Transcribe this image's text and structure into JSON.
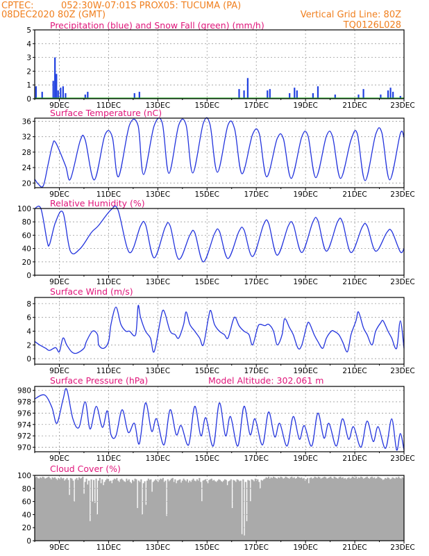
{
  "header": {
    "source": "CPTEC:",
    "location": "052:30W-07:01S   PROX05: TUCUMA (PA)",
    "run": "08DEC2020 80Z (GMT)",
    "grid_note": "Vertical Grid Line: 80Z",
    "code": "TQ0126L028"
  },
  "colors": {
    "precip": "#1f3fe0",
    "snow": "#22b022",
    "line": "#2233dd",
    "cloud": "#aaaaaa",
    "title": "#e0157a",
    "header": "#f07f1e"
  },
  "x_ticks": [
    "9DEC",
    "11DEC",
    "13DEC",
    "15DEC",
    "17DEC",
    "19DEC",
    "21DEC",
    "23DEC"
  ],
  "chart_data": [
    {
      "type": "bar",
      "id": "precip",
      "title": "Precipitation (blue) and Snow Fall (green) (mm/h)",
      "ylim": [
        0,
        5
      ],
      "yticks": [
        0,
        1,
        2,
        3,
        4,
        5
      ],
      "x_range": [
        0,
        15
      ],
      "series": [
        {
          "name": "Precipitation",
          "points": [
            [
              0.05,
              0.9
            ],
            [
              0.3,
              0.5
            ],
            [
              0.75,
              1.3
            ],
            [
              0.82,
              3.0
            ],
            [
              0.88,
              1.8
            ],
            [
              0.95,
              0.6
            ],
            [
              1.05,
              0.8
            ],
            [
              1.15,
              0.9
            ],
            [
              1.25,
              0.4
            ],
            [
              2.05,
              0.3
            ],
            [
              2.15,
              0.5
            ],
            [
              4.05,
              0.4
            ],
            [
              4.25,
              0.5
            ],
            [
              8.3,
              0.7
            ],
            [
              8.5,
              0.6
            ],
            [
              8.65,
              1.5
            ],
            [
              9.45,
              0.6
            ],
            [
              9.55,
              0.7
            ],
            [
              10.35,
              0.4
            ],
            [
              10.55,
              0.8
            ],
            [
              10.65,
              0.6
            ],
            [
              11.3,
              0.4
            ],
            [
              11.5,
              0.9
            ],
            [
              12.2,
              0.3
            ],
            [
              13.15,
              0.3
            ],
            [
              13.35,
              0.7
            ],
            [
              14.05,
              0.3
            ],
            [
              14.35,
              0.6
            ],
            [
              14.45,
              0.8
            ],
            [
              14.55,
              0.5
            ],
            [
              14.85,
              0.2
            ]
          ]
        },
        {
          "name": "Snow Fall",
          "points": []
        }
      ]
    },
    {
      "type": "line",
      "id": "temperature",
      "title": "Surface Temperature (nC)",
      "ylim": [
        18.8,
        36.8
      ],
      "yticks": [
        20,
        24,
        28,
        32,
        36
      ],
      "x_range": [
        0,
        15
      ],
      "x": [
        0,
        0.15,
        0.35,
        0.55,
        0.72,
        0.85,
        1.25,
        1.45,
        1.85,
        2.05,
        2.42,
        2.85,
        3.15,
        3.4,
        3.85,
        4.2,
        4.42,
        4.85,
        5.18,
        5.45,
        5.85,
        6.15,
        6.42,
        6.85,
        7.12,
        7.42,
        7.85,
        8.12,
        8.42,
        8.85,
        9.12,
        9.42,
        9.85,
        10.1,
        10.42,
        10.85,
        11.1,
        11.42,
        11.85,
        12.1,
        12.42,
        12.85,
        13.1,
        13.42,
        13.85,
        14.1,
        14.42,
        14.85,
        15
      ],
      "values": [
        21,
        19.7,
        19.3,
        25,
        29.8,
        30.5,
        24.5,
        21,
        31,
        31.2,
        20.8,
        32.4,
        32,
        21.6,
        35,
        34.8,
        22.2,
        34.8,
        35.6,
        22.5,
        35,
        35,
        22.6,
        35.5,
        35.2,
        22.8,
        35,
        34,
        22.4,
        32.6,
        32.8,
        21.6,
        31.5,
        31.5,
        21.2,
        32,
        32.2,
        21.4,
        32.2,
        32,
        21.2,
        31.2,
        32.8,
        20.6,
        32.6,
        33,
        20.8,
        32.8,
        31.8
      ]
    },
    {
      "type": "line",
      "id": "humidity",
      "title": "Relative Humidity (%)",
      "ylim": [
        0,
        100
      ],
      "yticks": [
        0,
        20,
        40,
        60,
        80,
        100
      ],
      "x_range": [
        0,
        15
      ],
      "x": [
        0,
        0.25,
        0.5,
        0.6,
        0.85,
        1.15,
        1.45,
        1.85,
        2.3,
        2.58,
        3.1,
        3.38,
        3.85,
        4.3,
        4.5,
        4.85,
        5.3,
        5.5,
        5.85,
        6.3,
        6.5,
        6.85,
        7.3,
        7.5,
        7.85,
        8.3,
        8.5,
        8.85,
        9.3,
        9.5,
        9.85,
        10.3,
        10.5,
        10.85,
        11.3,
        11.5,
        11.85,
        12.3,
        12.5,
        12.85,
        13.3,
        13.5,
        13.85,
        14.3,
        14.5,
        14.85,
        15
      ],
      "values": [
        100,
        100,
        52,
        46,
        80,
        94,
        36,
        40,
        64,
        74,
        98,
        98,
        34,
        74,
        76,
        26,
        72,
        74,
        24,
        60,
        64,
        20,
        62,
        66,
        25,
        66,
        68,
        28,
        76,
        78,
        30,
        74,
        76,
        34,
        80,
        82,
        36,
        80,
        80,
        34,
        72,
        74,
        36,
        64,
        66,
        35,
        40
      ]
    },
    {
      "type": "line",
      "id": "wind",
      "title": "Surface Wind (m/s)",
      "ylim": [
        -0.8,
        8.9
      ],
      "yticks": [
        0,
        2,
        4,
        6,
        8
      ],
      "x_range": [
        0,
        15
      ],
      "x": [
        0,
        0.2,
        0.45,
        0.6,
        0.85,
        1,
        1.15,
        1.3,
        1.5,
        1.7,
        2,
        2.1,
        2.35,
        2.55,
        2.6,
        2.8,
        3,
        3.1,
        3.3,
        3.5,
        3.7,
        3.85,
        4.1,
        4.2,
        4.3,
        4.5,
        4.7,
        4.85,
        5.1,
        5.2,
        5.3,
        5.5,
        5.7,
        5.85,
        6.05,
        6.15,
        6.3,
        6.5,
        6.7,
        6.85,
        7.05,
        7.15,
        7.3,
        7.5,
        7.7,
        7.85,
        8.05,
        8.15,
        8.3,
        8.5,
        8.7,
        8.85,
        9.05,
        9.15,
        9.35,
        9.5,
        9.7,
        9.85,
        10.05,
        10.15,
        10.35,
        10.5,
        10.7,
        10.85,
        11.05,
        11.15,
        11.35,
        11.5,
        11.7,
        11.85,
        12.05,
        12.15,
        12.35,
        12.5,
        12.7,
        12.85,
        13.05,
        13.15,
        13.35,
        13.5,
        13.7,
        13.85,
        14.05,
        14.15,
        14.35,
        14.5,
        14.7,
        14.85,
        15
      ],
      "values": [
        2.5,
        2,
        1.5,
        1.2,
        1.6,
        1,
        3,
        2,
        1,
        0.8,
        1.5,
        2.5,
        4,
        3.5,
        2,
        1.5,
        2.5,
        5,
        7.5,
        5,
        4,
        4,
        3.5,
        7.7,
        6,
        4,
        3,
        1,
        5.5,
        7,
        6.5,
        4,
        3.5,
        3,
        5,
        6.8,
        5,
        4,
        3,
        2,
        5.8,
        7,
        5,
        4,
        3.5,
        3,
        5.5,
        6,
        4.8,
        4,
        3.5,
        2,
        4.5,
        5,
        4.8,
        5,
        4,
        2,
        3.5,
        5.8,
        4.5,
        3.5,
        1.5,
        2,
        4.8,
        5.2,
        3.5,
        2.5,
        1.5,
        3,
        4,
        4,
        3.5,
        2.5,
        1,
        3.5,
        5.5,
        6.8,
        4.5,
        3.5,
        2,
        4,
        5.2,
        5.5,
        4,
        3,
        1.5,
        5.5,
        1.5
      ]
    },
    {
      "type": "line",
      "id": "pressure",
      "title": "Surface Pressure (hPa)",
      "annotation": "Model Altitude: 302.061  m",
      "ylim": [
        969.2,
        980.7
      ],
      "yticks": [
        970,
        972,
        974,
        976,
        978,
        980
      ],
      "x_range": [
        0,
        15
      ],
      "x": [
        0,
        0.4,
        0.7,
        0.9,
        1.15,
        1.3,
        1.55,
        1.8,
        2.05,
        2.25,
        2.5,
        2.75,
        2.95,
        3.1,
        3.3,
        3.55,
        3.8,
        4.05,
        4.25,
        4.5,
        4.75,
        4.95,
        5.25,
        5.5,
        5.75,
        5.95,
        6.25,
        6.5,
        6.75,
        6.95,
        7.25,
        7.5,
        7.75,
        7.95,
        8.25,
        8.5,
        8.75,
        8.95,
        9.25,
        9.5,
        9.75,
        9.95,
        10.25,
        10.5,
        10.75,
        10.95,
        11.25,
        11.5,
        11.75,
        11.95,
        12.25,
        12.5,
        12.75,
        12.95,
        13.25,
        13.5,
        13.75,
        13.95,
        14.25,
        14.5,
        14.7,
        14.85,
        15
      ],
      "values": [
        978.5,
        979.2,
        977,
        974.2,
        978.4,
        980.2,
        975,
        973.5,
        978,
        973.2,
        977.2,
        973.5,
        976.4,
        972.2,
        972,
        976.6,
        972.6,
        974.2,
        970.6,
        977.8,
        972.8,
        975,
        970.4,
        976.6,
        972.2,
        973.8,
        970.4,
        977.2,
        972,
        975.2,
        970.2,
        977.8,
        972,
        975.4,
        970.2,
        977.2,
        972.2,
        975,
        970.4,
        976.2,
        971.8,
        974.2,
        970.2,
        975.4,
        971.4,
        973.8,
        970.2,
        976,
        971.6,
        974.2,
        970.2,
        975,
        971.4,
        973.6,
        970,
        974.6,
        971,
        973.6,
        969.8,
        975,
        969.5,
        972.4,
        969.5
      ]
    },
    {
      "type": "bar",
      "id": "cloud",
      "title": "Cloud Cover (%)",
      "ylim": [
        0,
        100
      ],
      "yticks": [
        0,
        20,
        40,
        60,
        80,
        100
      ],
      "x_range": [
        0,
        15
      ],
      "values": [
        97,
        98,
        96,
        95,
        97,
        96,
        98,
        97,
        95,
        96,
        97,
        98,
        96,
        94,
        97,
        96,
        97,
        95,
        93,
        96,
        94,
        97,
        95,
        96,
        92,
        94,
        96,
        93,
        70,
        96,
        95,
        92,
        60,
        94,
        96,
        93,
        97,
        95,
        96,
        98,
        72,
        90,
        95,
        86,
        92,
        30,
        94,
        60,
        93,
        58,
        95,
        40,
        92,
        96,
        88,
        94,
        85,
        90,
        93,
        95,
        94,
        91,
        92,
        88,
        93,
        95,
        94,
        96,
        92,
        90,
        94,
        95,
        93,
        91,
        90,
        95,
        92,
        94,
        90,
        88,
        93,
        91,
        95,
        94,
        50,
        92,
        90,
        94,
        40,
        88,
        91,
        55,
        92,
        95,
        93,
        94,
        75,
        90,
        92,
        94,
        92,
        90,
        93,
        95,
        94,
        96,
        90,
        92,
        38,
        94,
        91,
        93,
        95,
        96,
        90,
        94,
        88,
        92,
        93,
        94,
        89,
        92,
        95,
        93,
        91,
        94,
        89,
        92,
        90,
        93,
        95,
        92,
        91,
        94,
        92,
        96,
        90,
        60,
        92,
        93,
        94,
        91,
        88,
        93,
        94,
        95,
        92,
        93,
        91,
        90,
        92,
        94,
        93,
        91,
        90,
        92,
        94,
        93,
        85,
        91,
        92,
        94,
        50,
        93,
        92,
        90,
        94,
        93,
        91,
        92,
        10,
        94,
        8,
        90,
        30,
        93,
        92,
        60,
        94,
        93,
        91,
        95,
        92,
        94,
        90,
        80,
        93,
        92,
        94,
        95,
        97,
        96,
        98,
        95,
        97,
        96,
        98,
        97,
        96,
        95,
        97,
        96,
        98,
        97,
        95,
        96,
        98,
        97,
        96,
        95,
        97,
        98,
        96,
        97,
        95,
        96,
        98,
        97,
        96,
        97,
        95,
        96,
        92,
        94,
        96,
        88,
        96,
        97,
        95,
        96,
        98,
        97,
        96,
        98,
        97,
        95,
        96,
        97,
        98,
        97,
        95,
        96,
        97,
        98,
        96,
        95,
        98,
        97,
        96,
        95,
        97,
        98,
        96,
        97,
        95,
        96,
        94,
        96,
        97,
        95,
        96,
        98,
        97,
        96,
        98,
        95,
        97,
        96,
        98,
        97,
        95,
        96,
        97,
        98,
        96,
        95,
        97,
        98,
        96,
        97,
        95,
        96,
        98,
        97,
        96,
        95,
        93,
        94,
        96,
        95,
        97,
        96,
        94,
        95,
        97,
        96,
        95,
        97,
        96,
        98,
        96,
        95,
        97,
        96
      ]
    }
  ]
}
